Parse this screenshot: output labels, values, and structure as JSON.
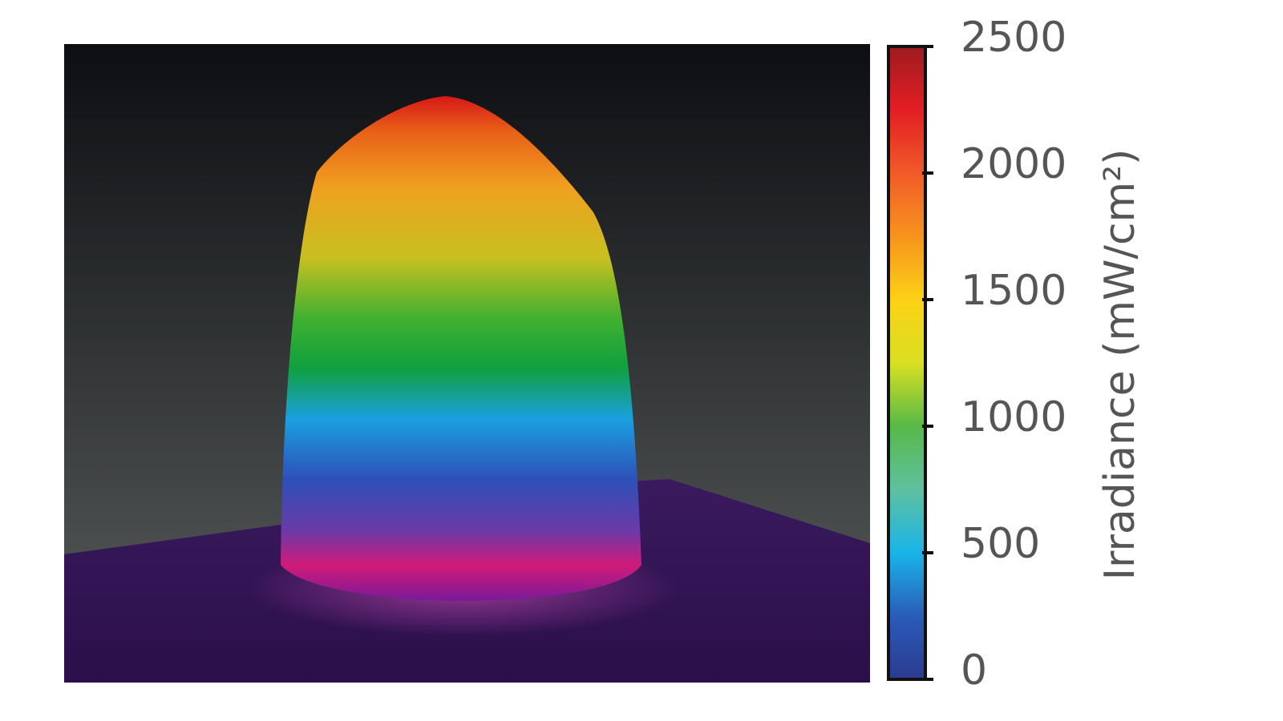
{
  "chart_data": {
    "type": "surface-colorbar",
    "colorbar_label": "Irradiance (mW/cm²)",
    "zlim": [
      0,
      2500
    ],
    "zticks": [
      0,
      500,
      1000,
      1500,
      2000,
      2500
    ],
    "colormap": [
      "#2b3a8f",
      "#2a5cb8",
      "#19b5e8",
      "#5fc0a0",
      "#57b947",
      "#d9e021",
      "#fcd116",
      "#f7941d",
      "#f15a29",
      "#e31e24",
      "#9e1b1f"
    ]
  }
}
